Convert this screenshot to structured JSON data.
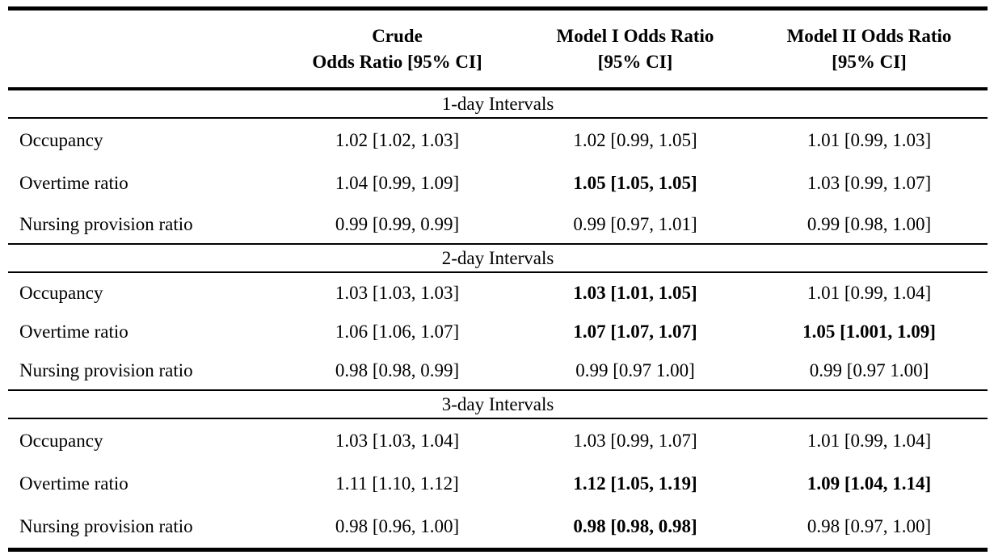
{
  "header": {
    "col_label": "",
    "col_crude": "Crude\nOdds Ratio [95% CI]",
    "col_model1": "Model I Odds Ratio\n[95% CI]",
    "col_model2": "Model II Odds Ratio\n[95% CI]"
  },
  "sections": [
    {
      "title": "1-day Intervals",
      "rows": [
        {
          "label": "Occupancy",
          "crude": "1.02 [1.02, 1.03]",
          "model1": "1.02 [0.99, 1.05]",
          "model2": "1.01 [0.99, 1.03]",
          "model1_bold": false,
          "model2_bold": false
        },
        {
          "label": "Overtime ratio",
          "crude": "1.04 [0.99, 1.09]",
          "model1": "1.05 [1.05, 1.05]",
          "model2": "1.03 [0.99, 1.07]",
          "model1_bold": true,
          "model2_bold": false
        },
        {
          "label": "Nursing provision ratio",
          "crude": "0.99 [0.99, 0.99]",
          "model1": "0.99 [0.97, 1.01]",
          "model2": "0.99 [0.98, 1.00]",
          "model1_bold": false,
          "model2_bold": false
        }
      ]
    },
    {
      "title": "2-day Intervals",
      "rows": [
        {
          "label": "Occupancy",
          "crude": "1.03 [1.03, 1.03]",
          "model1": "1.03 [1.01, 1.05]",
          "model2": "1.01 [0.99, 1.04]",
          "model1_bold": true,
          "model2_bold": false
        },
        {
          "label": "Overtime ratio",
          "crude": "1.06 [1.06, 1.07]",
          "model1": "1.07 [1.07, 1.07]",
          "model2": "1.05 [1.001, 1.09]",
          "model1_bold": true,
          "model2_bold": true
        },
        {
          "label": "Nursing provision ratio",
          "crude": "0.98 [0.98, 0.99]",
          "model1": "0.99 [0.97 1.00]",
          "model2": "0.99 [0.97 1.00]",
          "model1_bold": false,
          "model2_bold": false
        }
      ]
    },
    {
      "title": "3-day Intervals",
      "rows": [
        {
          "label": "Occupancy",
          "crude": "1.03 [1.03, 1.04]",
          "model1": "1.03 [0.99, 1.07]",
          "model2": "1.01 [0.99, 1.04]",
          "model1_bold": false,
          "model2_bold": false
        },
        {
          "label": "Overtime ratio",
          "crude": "1.11 [1.10, 1.12]",
          "model1": "1.12 [1.05, 1.19]",
          "model2": "1.09 [1.04, 1.14]",
          "model1_bold": true,
          "model2_bold": true
        },
        {
          "label": "Nursing provision ratio",
          "crude": "0.98 [0.96, 1.00]",
          "model1": "0.98 [0.98, 0.98]",
          "model2": "0.98 [0.97, 1.00]",
          "model1_bold": true,
          "model2_bold": false
        }
      ]
    }
  ]
}
